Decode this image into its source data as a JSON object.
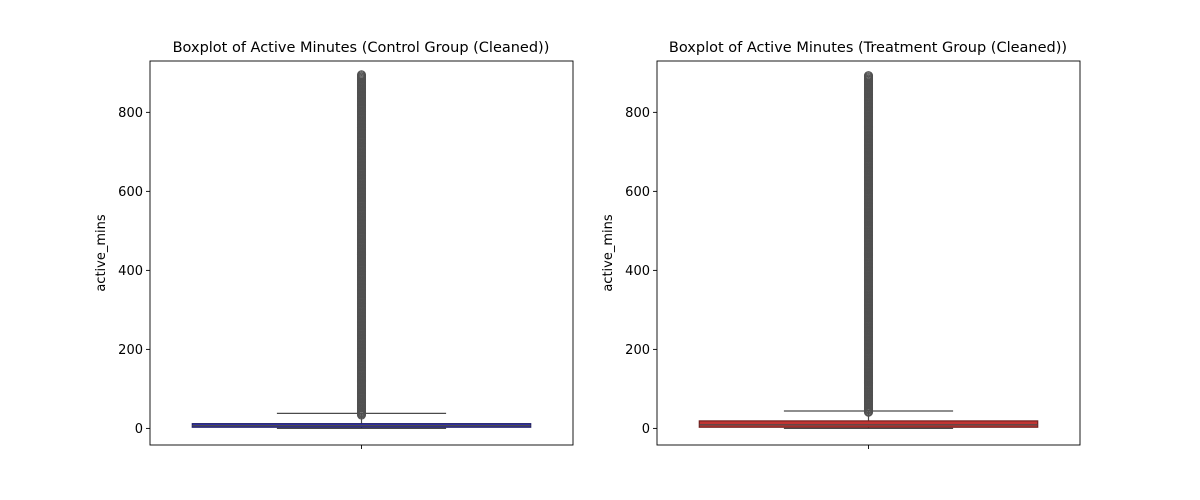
{
  "chart_data": [
    {
      "type": "boxplot",
      "title": "Boxplot of Active Minutes (Control Group (Cleaned))",
      "xlabel": "",
      "ylabel": "active_mins",
      "ylim": [
        -42,
        930
      ],
      "yticks": [
        0,
        200,
        400,
        600,
        800
      ],
      "color": "#3533b2",
      "box": {
        "q1": 3,
        "median": 7,
        "q3": 12,
        "whisker_low": 0,
        "whisker_high": 38
      },
      "outliers_range": [
        34,
        897
      ],
      "grid": false
    },
    {
      "type": "boxplot",
      "title": "Boxplot of Active Minutes (Treatment Group (Cleaned))",
      "xlabel": "",
      "ylabel": "active_mins",
      "ylim": [
        -42,
        930
      ],
      "yticks": [
        0,
        200,
        400,
        600,
        800
      ],
      "color": "#c13533",
      "box": {
        "q1": 3,
        "median": 9,
        "q3": 19,
        "whisker_low": 0,
        "whisker_high": 44
      },
      "outliers_range": [
        41,
        895
      ],
      "grid": false
    }
  ]
}
